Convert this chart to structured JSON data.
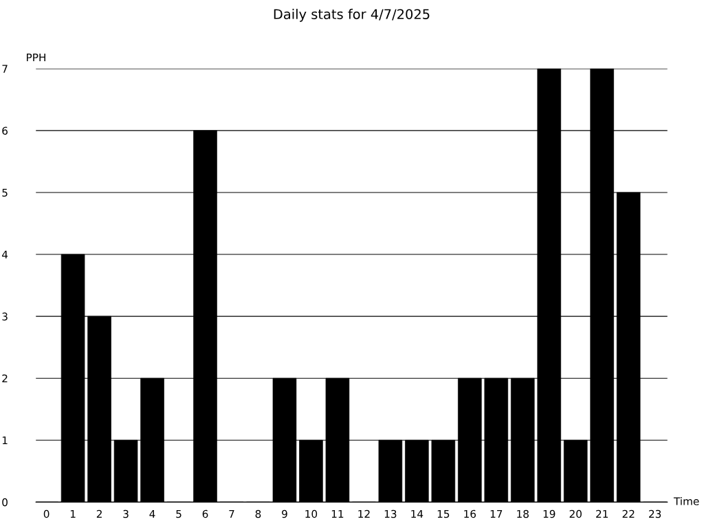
{
  "chart_data": {
    "type": "bar",
    "title": "Daily stats for 4/7/2025",
    "xlabel": "Time",
    "ylabel": "PPH",
    "categories": [
      "0",
      "1",
      "2",
      "3",
      "4",
      "5",
      "6",
      "7",
      "8",
      "9",
      "10",
      "11",
      "12",
      "13",
      "14",
      "15",
      "16",
      "17",
      "18",
      "19",
      "20",
      "21",
      "22",
      "23"
    ],
    "values": [
      0,
      4,
      3,
      1,
      2,
      0,
      6,
      0,
      0,
      2,
      1,
      2,
      0,
      1,
      1,
      1,
      2,
      2,
      2,
      7,
      1,
      7,
      5,
      0
    ],
    "color": "#000000",
    "ylim": [
      0,
      7
    ],
    "yticks": [
      0,
      1,
      2,
      3,
      4,
      5,
      6,
      7
    ],
    "grid": "y",
    "legend": false
  }
}
